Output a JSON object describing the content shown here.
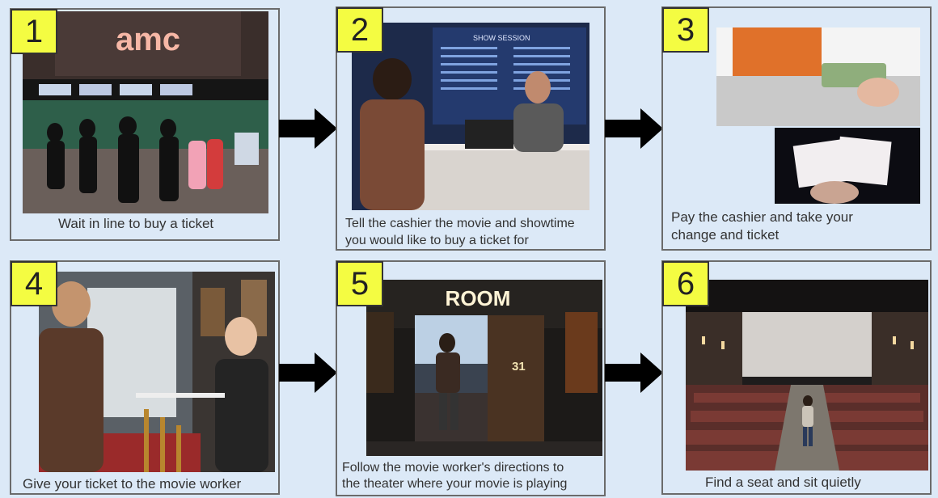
{
  "steps": [
    {
      "number": "1",
      "caption": "Wait in line to buy a ticket",
      "sign": "amc"
    },
    {
      "number": "2",
      "caption_line1": "Tell the cashier the movie and showtime",
      "caption_line2": "you would like to buy a ticket for",
      "board": "SHOW SESSION"
    },
    {
      "number": "3",
      "caption_line1": "Pay the cashier and take your",
      "caption_line2": "change and ticket"
    },
    {
      "number": "4",
      "caption": "Give your ticket to the movie worker"
    },
    {
      "number": "5",
      "caption_line1": "Follow the movie worker's directions to",
      "caption_line2": "the theater where your movie is playing",
      "sign": "ROOM",
      "door_number": "31"
    },
    {
      "number": "6",
      "caption": "Find a seat and sit quietly"
    }
  ],
  "colors": {
    "background": "#dce9f7",
    "number_box": "#f4fc42",
    "border": "#6b6b6b"
  }
}
